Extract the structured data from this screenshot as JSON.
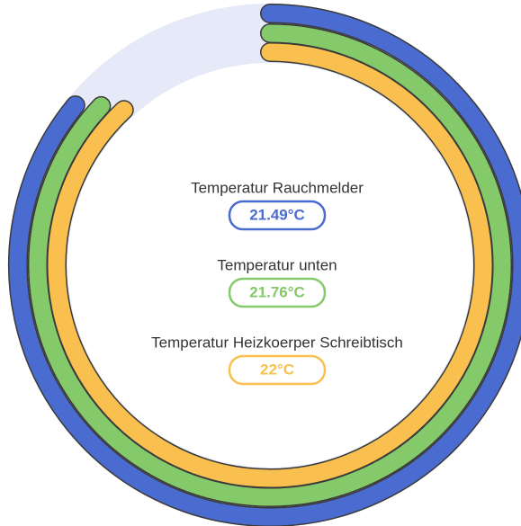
{
  "chart_data": {
    "type": "radialBar",
    "ylim": [
      0,
      25
    ],
    "track_color": "#e6e9f7",
    "series": [
      {
        "name": "Temperatur Rauchmelder",
        "color": "#4a6bd0",
        "values": [
          21.49
        ],
        "value_labels": [
          "21.49°C"
        ]
      },
      {
        "name": "Temperatur unten",
        "color": "#84c96a",
        "values": [
          21.76
        ],
        "value_labels": [
          "21.76°C"
        ]
      },
      {
        "name": "Temperatur Heizkoerper Schreibtisch",
        "color": "#f9c04f",
        "values": [
          22
        ],
        "value_labels": [
          "22°C"
        ]
      }
    ]
  }
}
